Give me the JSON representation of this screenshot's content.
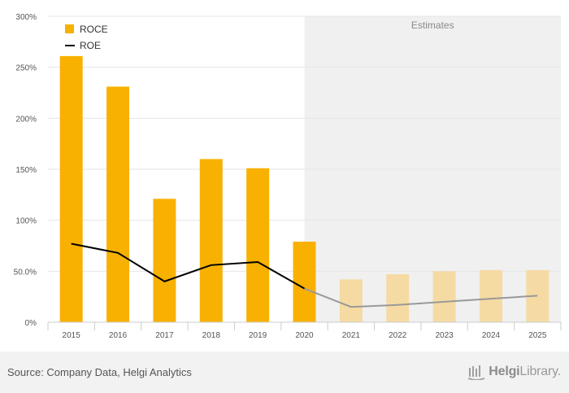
{
  "chart_data": {
    "type": "bar",
    "categories": [
      "2015",
      "2016",
      "2017",
      "2018",
      "2019",
      "2020",
      "2021",
      "2022",
      "2023",
      "2024",
      "2025"
    ],
    "series": [
      {
        "name": "ROCE",
        "kind": "bar",
        "color": "#f8b100",
        "estimate_color": "#f5dba3",
        "values": [
          261,
          231,
          121,
          160,
          151,
          79,
          42,
          47,
          50,
          51,
          51
        ]
      },
      {
        "name": "ROE",
        "kind": "line",
        "color": "#000000",
        "estimate_color": "#999999",
        "values": [
          77,
          68,
          40,
          56,
          59,
          33,
          15,
          17,
          20,
          23,
          26
        ]
      }
    ],
    "estimates_from": "2021",
    "estimates_label": "Estimates",
    "ylim": [
      0,
      300
    ],
    "yticks": [
      0,
      50,
      100,
      150,
      200,
      250,
      300
    ],
    "ytick_labels": [
      "0%",
      "50.0%",
      "100%",
      "150%",
      "200%",
      "250%",
      "300%"
    ],
    "grid": true,
    "legend_position": "top-left",
    "xlabel": "",
    "ylabel": ""
  },
  "footer": {
    "source": "Source: Company Data, Helgi Analytics",
    "logo_bold": "Helgi",
    "logo_rest": "Library."
  }
}
